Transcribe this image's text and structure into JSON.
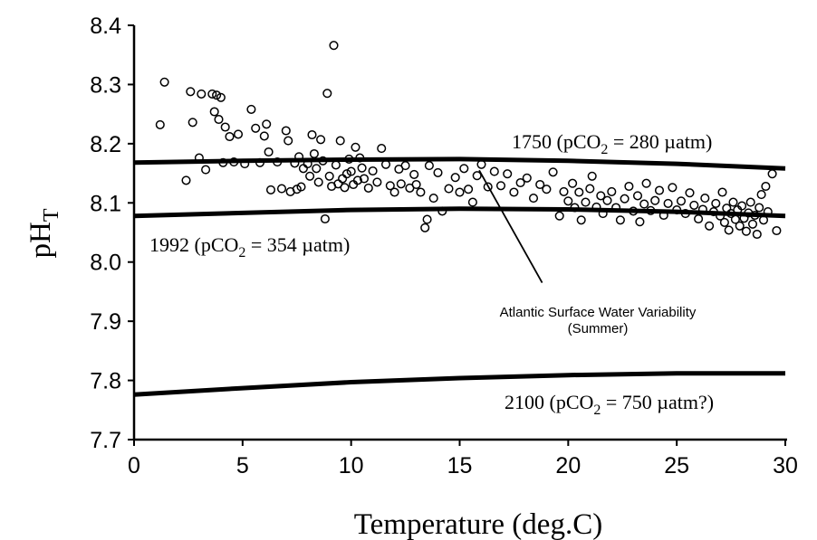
{
  "chart_data": {
    "type": "scatter",
    "xlabel": "Temperature (deg.C)",
    "ylabel": "pH",
    "ylabel_sub": "T",
    "xlim": [
      0,
      30
    ],
    "ylim": [
      7.7,
      8.4
    ],
    "x_ticks": [
      "0",
      "5",
      "10",
      "15",
      "20",
      "25",
      "30"
    ],
    "y_ticks": [
      "7.7",
      "7.8",
      "7.9",
      "8.0",
      "8.1",
      "8.2",
      "8.3",
      "8.4"
    ],
    "grid": false,
    "lines": [
      {
        "label": "1750 (pCO2 = 280 µatm)",
        "label_parts": [
          "1750 (pCO",
          "2",
          " = 280 µatm)"
        ],
        "points": [
          [
            0,
            8.168
          ],
          [
            5,
            8.171
          ],
          [
            10,
            8.173
          ],
          [
            15,
            8.174
          ],
          [
            20,
            8.171
          ],
          [
            25,
            8.166
          ],
          [
            30,
            8.158
          ]
        ]
      },
      {
        "label": "1992 (pCO2 = 354 µatm)",
        "label_parts": [
          "1992 (pCO",
          "2",
          " = 354 µatm)"
        ],
        "points": [
          [
            0,
            8.078
          ],
          [
            5,
            8.083
          ],
          [
            10,
            8.088
          ],
          [
            15,
            8.09
          ],
          [
            20,
            8.089
          ],
          [
            25,
            8.085
          ],
          [
            30,
            8.078
          ]
        ]
      },
      {
        "label": "2100 (pCO2 = 750 µatm?)",
        "label_parts": [
          "2100 (pCO",
          "2",
          " = 750 µatm?)"
        ],
        "points": [
          [
            0,
            7.776
          ],
          [
            5,
            7.787
          ],
          [
            10,
            7.797
          ],
          [
            15,
            7.804
          ],
          [
            20,
            7.809
          ],
          [
            25,
            7.812
          ],
          [
            30,
            7.812
          ]
        ]
      }
    ],
    "annotation": {
      "lines": [
        "Atlantic Surface Water Variability",
        "(Summer)"
      ],
      "arrow_from": [
        18.8,
        7.965
      ],
      "arrow_to": [
        15.9,
        8.155
      ]
    },
    "points": [
      [
        1.2,
        8.232
      ],
      [
        1.4,
        8.304
      ],
      [
        2.4,
        8.138
      ],
      [
        2.6,
        8.288
      ],
      [
        2.7,
        8.236
      ],
      [
        3.0,
        8.176
      ],
      [
        3.1,
        8.284
      ],
      [
        3.3,
        8.156
      ],
      [
        3.6,
        8.284
      ],
      [
        3.7,
        8.254
      ],
      [
        3.8,
        8.282
      ],
      [
        3.9,
        8.241
      ],
      [
        4.0,
        8.278
      ],
      [
        4.1,
        8.168
      ],
      [
        4.2,
        8.228
      ],
      [
        4.4,
        8.212
      ],
      [
        4.6,
        8.169
      ],
      [
        4.8,
        8.216
      ],
      [
        5.1,
        8.166
      ],
      [
        5.4,
        8.258
      ],
      [
        5.6,
        8.226
      ],
      [
        5.8,
        8.168
      ],
      [
        6.0,
        8.213
      ],
      [
        6.1,
        8.233
      ],
      [
        6.2,
        8.186
      ],
      [
        6.3,
        8.122
      ],
      [
        6.6,
        8.169
      ],
      [
        6.8,
        8.124
      ],
      [
        7.0,
        8.222
      ],
      [
        7.1,
        8.205
      ],
      [
        7.2,
        8.119
      ],
      [
        7.4,
        8.167
      ],
      [
        7.5,
        8.123
      ],
      [
        7.6,
        8.178
      ],
      [
        7.7,
        8.127
      ],
      [
        7.8,
        8.158
      ],
      [
        8.0,
        8.166
      ],
      [
        8.1,
        8.145
      ],
      [
        8.2,
        8.215
      ],
      [
        8.3,
        8.183
      ],
      [
        8.4,
        8.158
      ],
      [
        8.5,
        8.135
      ],
      [
        8.6,
        8.207
      ],
      [
        8.7,
        8.171
      ],
      [
        8.8,
        8.073
      ],
      [
        8.9,
        8.285
      ],
      [
        9.0,
        8.145
      ],
      [
        9.1,
        8.128
      ],
      [
        9.2,
        8.366
      ],
      [
        9.3,
        8.164
      ],
      [
        9.4,
        8.132
      ],
      [
        9.5,
        8.205
      ],
      [
        9.6,
        8.141
      ],
      [
        9.7,
        8.126
      ],
      [
        9.8,
        8.149
      ],
      [
        9.9,
        8.174
      ],
      [
        10.0,
        8.153
      ],
      [
        10.1,
        8.131
      ],
      [
        10.2,
        8.194
      ],
      [
        10.3,
        8.138
      ],
      [
        10.4,
        8.176
      ],
      [
        10.5,
        8.159
      ],
      [
        10.6,
        8.141
      ],
      [
        10.8,
        8.125
      ],
      [
        11.0,
        8.154
      ],
      [
        11.2,
        8.135
      ],
      [
        11.4,
        8.192
      ],
      [
        11.6,
        8.165
      ],
      [
        11.8,
        8.129
      ],
      [
        12.0,
        8.118
      ],
      [
        12.2,
        8.157
      ],
      [
        12.3,
        8.132
      ],
      [
        12.5,
        8.163
      ],
      [
        12.7,
        8.125
      ],
      [
        12.9,
        8.148
      ],
      [
        13.0,
        8.131
      ],
      [
        13.2,
        8.118
      ],
      [
        13.4,
        8.058
      ],
      [
        13.5,
        8.072
      ],
      [
        13.6,
        8.163
      ],
      [
        13.8,
        8.108
      ],
      [
        14.0,
        8.151
      ],
      [
        14.2,
        8.086
      ],
      [
        14.5,
        8.124
      ],
      [
        14.8,
        8.143
      ],
      [
        15.0,
        8.118
      ],
      [
        15.2,
        8.158
      ],
      [
        15.4,
        8.123
      ],
      [
        15.6,
        8.101
      ],
      [
        15.8,
        8.146
      ],
      [
        16.0,
        8.165
      ],
      [
        16.3,
        8.127
      ],
      [
        16.6,
        8.153
      ],
      [
        16.9,
        8.129
      ],
      [
        17.2,
        8.149
      ],
      [
        17.5,
        8.118
      ],
      [
        17.8,
        8.134
      ],
      [
        18.1,
        8.142
      ],
      [
        18.4,
        8.108
      ],
      [
        18.7,
        8.131
      ],
      [
        19.0,
        8.123
      ],
      [
        19.3,
        8.152
      ],
      [
        19.6,
        8.078
      ],
      [
        19.8,
        8.119
      ],
      [
        20.0,
        8.103
      ],
      [
        20.2,
        8.133
      ],
      [
        20.3,
        8.092
      ],
      [
        20.5,
        8.118
      ],
      [
        20.6,
        8.071
      ],
      [
        20.8,
        8.101
      ],
      [
        21.0,
        8.124
      ],
      [
        21.1,
        8.145
      ],
      [
        21.3,
        8.093
      ],
      [
        21.5,
        8.112
      ],
      [
        21.6,
        8.082
      ],
      [
        21.8,
        8.104
      ],
      [
        22.0,
        8.119
      ],
      [
        22.2,
        8.092
      ],
      [
        22.4,
        8.071
      ],
      [
        22.6,
        8.107
      ],
      [
        22.8,
        8.128
      ],
      [
        23.0,
        8.086
      ],
      [
        23.2,
        8.112
      ],
      [
        23.3,
        8.068
      ],
      [
        23.5,
        8.098
      ],
      [
        23.6,
        8.133
      ],
      [
        23.8,
        8.087
      ],
      [
        24.0,
        8.104
      ],
      [
        24.2,
        8.121
      ],
      [
        24.4,
        8.079
      ],
      [
        24.6,
        8.099
      ],
      [
        24.8,
        8.126
      ],
      [
        25.0,
        8.088
      ],
      [
        25.2,
        8.103
      ],
      [
        25.4,
        8.082
      ],
      [
        25.6,
        8.117
      ],
      [
        25.8,
        8.096
      ],
      [
        26.0,
        8.073
      ],
      [
        26.2,
        8.089
      ],
      [
        26.3,
        8.108
      ],
      [
        26.5,
        8.061
      ],
      [
        26.7,
        8.085
      ],
      [
        26.8,
        8.099
      ],
      [
        27.0,
        8.078
      ],
      [
        27.1,
        8.118
      ],
      [
        27.2,
        8.067
      ],
      [
        27.3,
        8.091
      ],
      [
        27.4,
        8.054
      ],
      [
        27.5,
        8.082
      ],
      [
        27.6,
        8.101
      ],
      [
        27.7,
        8.072
      ],
      [
        27.8,
        8.088
      ],
      [
        27.9,
        8.061
      ],
      [
        28.0,
        8.095
      ],
      [
        28.1,
        8.074
      ],
      [
        28.2,
        8.052
      ],
      [
        28.3,
        8.083
      ],
      [
        28.4,
        8.101
      ],
      [
        28.5,
        8.064
      ],
      [
        28.6,
        8.079
      ],
      [
        28.7,
        8.047
      ],
      [
        28.8,
        8.092
      ],
      [
        28.9,
        8.114
      ],
      [
        29.0,
        8.071
      ],
      [
        29.1,
        8.128
      ],
      [
        29.2,
        8.085
      ],
      [
        29.4,
        8.149
      ],
      [
        29.6,
        8.053
      ]
    ]
  }
}
